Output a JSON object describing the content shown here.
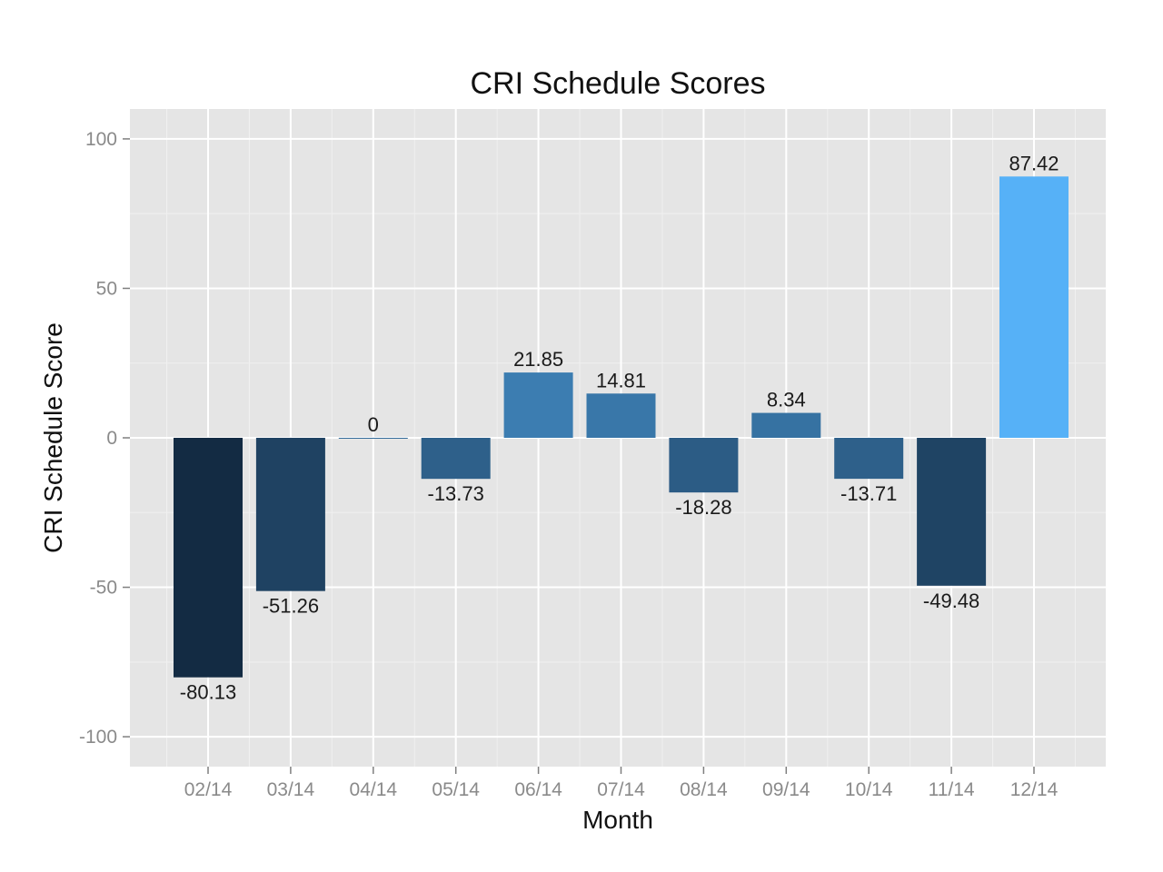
{
  "chart_data": {
    "type": "bar",
    "title": "CRI Schedule Scores",
    "xlabel": "Month",
    "ylabel": "CRI Schedule Score",
    "categories": [
      "02/14",
      "03/14",
      "04/14",
      "05/14",
      "06/14",
      "07/14",
      "08/14",
      "09/14",
      "10/14",
      "11/14",
      "12/14"
    ],
    "values": [
      -80.13,
      -51.26,
      0,
      -13.73,
      21.85,
      14.81,
      -18.28,
      8.34,
      -13.71,
      -49.48,
      87.42
    ],
    "data_labels": [
      "-80.13",
      "-51.26",
      "0",
      "-13.73",
      "21.85",
      "14.81",
      "-18.28",
      "8.34",
      "-13.71",
      "-49.48",
      "87.42"
    ],
    "yticks": [
      -100,
      -50,
      0,
      50,
      100
    ],
    "ylim": [
      -110,
      110
    ],
    "grid": true,
    "legend": "none",
    "fill_scale": "value: low = dark navy, high = light blue",
    "colors": {
      "panel": "#e5e5e5",
      "grid_major": "#ffffff",
      "grid_minor": "#f0f0f0",
      "low": "#132b43",
      "high": "#56b1f7"
    }
  }
}
